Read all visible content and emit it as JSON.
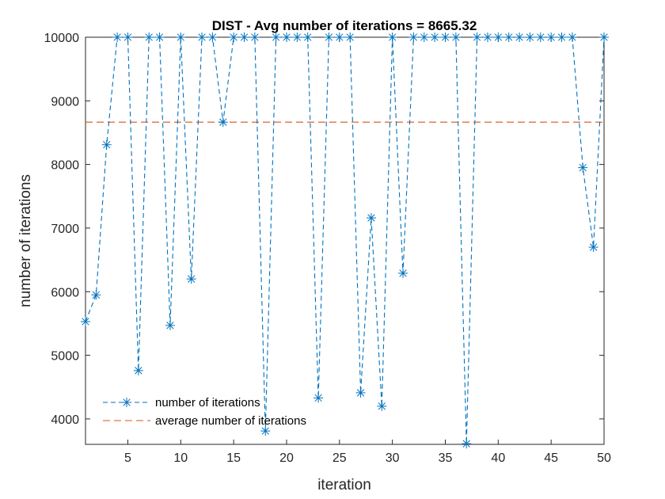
{
  "chart_data": {
    "type": "line",
    "title": "DIST - Avg number of iterations = 8665.32",
    "xlabel": "iteration",
    "ylabel": "number of iterations",
    "xlim": [
      1,
      50
    ],
    "ylim": [
      3600,
      10000
    ],
    "xticks": [
      5,
      10,
      15,
      20,
      25,
      30,
      35,
      40,
      45,
      50
    ],
    "yticks": [
      4000,
      5000,
      6000,
      7000,
      8000,
      9000,
      10000
    ],
    "grid": false,
    "legend_position": "bottom-left",
    "series": [
      {
        "name": "number of iterations",
        "color": "#0072BD",
        "line_style": "dashed",
        "marker": "asterisk",
        "x": [
          1,
          2,
          3,
          4,
          5,
          6,
          7,
          8,
          9,
          10,
          11,
          12,
          13,
          14,
          15,
          16,
          17,
          18,
          19,
          20,
          21,
          22,
          23,
          24,
          25,
          26,
          27,
          28,
          29,
          30,
          31,
          32,
          33,
          34,
          35,
          36,
          37,
          38,
          39,
          40,
          41,
          42,
          43,
          44,
          45,
          46,
          47,
          48,
          49,
          50
        ],
        "y": [
          5530,
          5950,
          8310,
          10000,
          10000,
          4760,
          10000,
          10000,
          5470,
          10000,
          6200,
          10000,
          10000,
          8665,
          10000,
          10000,
          10000,
          3810,
          10000,
          10000,
          10000,
          10000,
          4330,
          10000,
          10000,
          10000,
          4410,
          7160,
          4200,
          10000,
          6290,
          10000,
          10000,
          10000,
          10000,
          10000,
          3610,
          10000,
          10000,
          10000,
          10000,
          10000,
          10000,
          10000,
          10000,
          10000,
          10000,
          7950,
          6700,
          10000
        ]
      },
      {
        "name": "average number of iterations",
        "color": "#D95319",
        "line_style": "dashed",
        "marker": "none",
        "x": [
          1,
          50
        ],
        "y": [
          8665.32,
          8665.32
        ]
      }
    ]
  }
}
